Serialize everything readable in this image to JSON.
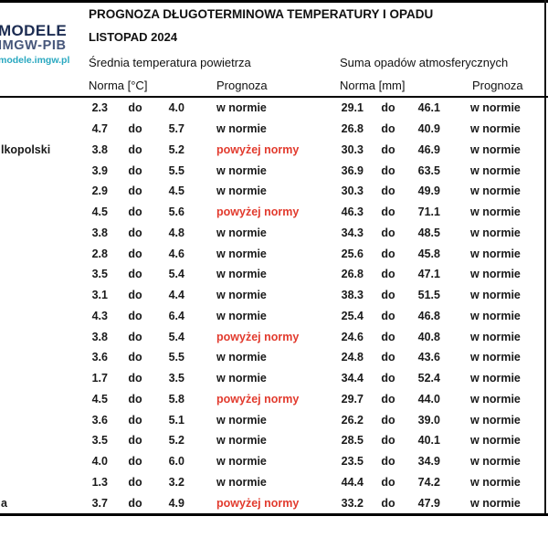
{
  "logo": {
    "line1": "MODELE",
    "line2": "IMGW-PIB",
    "line3": "modele.imgw.pl"
  },
  "header": {
    "title": "PROGNOZA DŁUGOTERMINOWA TEMPERATURY I OPADU",
    "subtitle": "LISTOPAD 2024",
    "temp_section": "Średnia temperatura powietrza",
    "precip_section": "Suma opadów atmosferycznych",
    "temp_norm_label": "Norma [°C]",
    "temp_prognoza_label": "Prognoza",
    "precip_norm_label": "Norma [mm]",
    "precip_prognoza_label": "Prognoza"
  },
  "separator": "do",
  "colors": {
    "forecast_above": "#e23b2e",
    "forecast_normal": "#1a1a1a",
    "logo_navy": "#1c2c52",
    "logo_slate": "#46567a",
    "logo_cyan": "#29a8c0"
  },
  "rows": [
    {
      "city": "",
      "t_min": "2.3",
      "t_max": "4.0",
      "t_prog": "w normie",
      "t_above": false,
      "p_min": "29.1",
      "p_max": "46.1",
      "p_prog": "w normie",
      "p_above": false
    },
    {
      "city": "",
      "t_min": "4.7",
      "t_max": "5.7",
      "t_prog": "w normie",
      "t_above": false,
      "p_min": "26.8",
      "p_max": "40.9",
      "p_prog": "w normie",
      "p_above": false
    },
    {
      "city": "lkopolski",
      "t_min": "3.8",
      "t_max": "5.2",
      "t_prog": "powyżej normy",
      "t_above": true,
      "p_min": "30.3",
      "p_max": "46.9",
      "p_prog": "w normie",
      "p_above": false
    },
    {
      "city": "",
      "t_min": "3.9",
      "t_max": "5.5",
      "t_prog": "w normie",
      "t_above": false,
      "p_min": "36.9",
      "p_max": "63.5",
      "p_prog": "w normie",
      "p_above": false
    },
    {
      "city": "",
      "t_min": "2.9",
      "t_max": "4.5",
      "t_prog": "w normie",
      "t_above": false,
      "p_min": "30.3",
      "p_max": "49.9",
      "p_prog": "w normie",
      "p_above": false
    },
    {
      "city": "",
      "t_min": "4.5",
      "t_max": "5.6",
      "t_prog": "powyżej normy",
      "t_above": true,
      "p_min": "46.3",
      "p_max": "71.1",
      "p_prog": "w normie",
      "p_above": false
    },
    {
      "city": "",
      "t_min": "3.8",
      "t_max": "4.8",
      "t_prog": "w normie",
      "t_above": false,
      "p_min": "34.3",
      "p_max": "48.5",
      "p_prog": "w normie",
      "p_above": false
    },
    {
      "city": "",
      "t_min": "2.8",
      "t_max": "4.6",
      "t_prog": "w normie",
      "t_above": false,
      "p_min": "25.6",
      "p_max": "45.8",
      "p_prog": "w normie",
      "p_above": false
    },
    {
      "city": "",
      "t_min": "3.5",
      "t_max": "5.4",
      "t_prog": "w normie",
      "t_above": false,
      "p_min": "26.8",
      "p_max": "47.1",
      "p_prog": "w normie",
      "p_above": false
    },
    {
      "city": "",
      "t_min": "3.1",
      "t_max": "4.4",
      "t_prog": "w normie",
      "t_above": false,
      "p_min": "38.3",
      "p_max": "51.5",
      "p_prog": "w normie",
      "p_above": false
    },
    {
      "city": "",
      "t_min": "4.3",
      "t_max": "6.4",
      "t_prog": "w normie",
      "t_above": false,
      "p_min": "25.4",
      "p_max": "46.8",
      "p_prog": "w normie",
      "p_above": false
    },
    {
      "city": "",
      "t_min": "3.8",
      "t_max": "5.4",
      "t_prog": "powyżej normy",
      "t_above": true,
      "p_min": "24.6",
      "p_max": "40.8",
      "p_prog": "w normie",
      "p_above": false
    },
    {
      "city": "",
      "t_min": "3.6",
      "t_max": "5.5",
      "t_prog": "w normie",
      "t_above": false,
      "p_min": "24.8",
      "p_max": "43.6",
      "p_prog": "w normie",
      "p_above": false
    },
    {
      "city": "",
      "t_min": "1.7",
      "t_max": "3.5",
      "t_prog": "w normie",
      "t_above": false,
      "p_min": "34.4",
      "p_max": "52.4",
      "p_prog": "w normie",
      "p_above": false
    },
    {
      "city": "",
      "t_min": "4.5",
      "t_max": "5.8",
      "t_prog": "powyżej normy",
      "t_above": true,
      "p_min": "29.7",
      "p_max": "44.0",
      "p_prog": "w normie",
      "p_above": false
    },
    {
      "city": "",
      "t_min": "3.6",
      "t_max": "5.1",
      "t_prog": "w normie",
      "t_above": false,
      "p_min": "26.2",
      "p_max": "39.0",
      "p_prog": "w normie",
      "p_above": false
    },
    {
      "city": "",
      "t_min": "3.5",
      "t_max": "5.2",
      "t_prog": "w normie",
      "t_above": false,
      "p_min": "28.5",
      "p_max": "40.1",
      "p_prog": "w normie",
      "p_above": false
    },
    {
      "city": "",
      "t_min": "4.0",
      "t_max": "6.0",
      "t_prog": "w normie",
      "t_above": false,
      "p_min": "23.5",
      "p_max": "34.9",
      "p_prog": "w normie",
      "p_above": false
    },
    {
      "city": "",
      "t_min": "1.3",
      "t_max": "3.2",
      "t_prog": "w normie",
      "t_above": false,
      "p_min": "44.4",
      "p_max": "74.2",
      "p_prog": "w normie",
      "p_above": false
    },
    {
      "city": "a",
      "t_min": "3.7",
      "t_max": "4.9",
      "t_prog": "powyżej normy",
      "t_above": true,
      "p_min": "33.2",
      "p_max": "47.9",
      "p_prog": "w normie",
      "p_above": false
    }
  ]
}
